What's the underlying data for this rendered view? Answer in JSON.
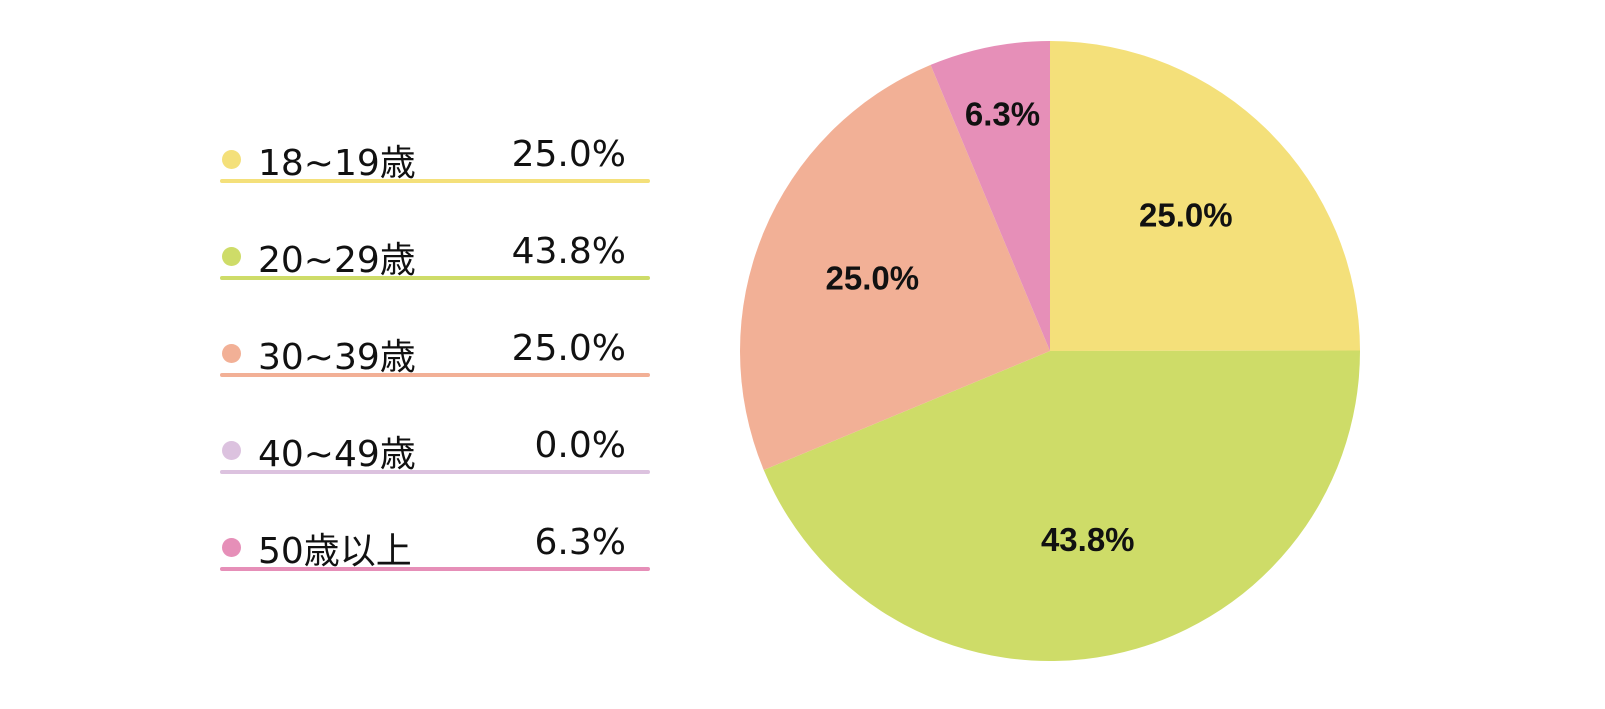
{
  "chart_data": {
    "type": "pie",
    "categories": [
      "18~19歳",
      "20~29歳",
      "30~39歳",
      "40~49歳",
      "50歳以上"
    ],
    "values": [
      25.0,
      43.8,
      25.0,
      0.0,
      6.3
    ],
    "value_labels": [
      "25.0%",
      "43.8%",
      "25.0%",
      "0.0%",
      "6.3%"
    ],
    "colors": [
      "#f4e07a",
      "#cedc68",
      "#f2b096",
      "#dcc2df",
      "#e68fb8"
    ],
    "start": "12 o'clock",
    "direction": "clockwise",
    "legend_position": "left"
  }
}
